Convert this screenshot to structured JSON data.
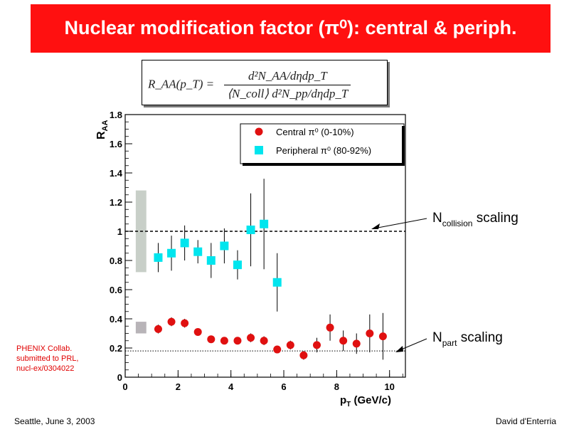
{
  "slide": {
    "title": "Nuclear modification factor (π⁰): central & periph.",
    "formula_lhs": "R_AA(p_T) =",
    "formula_num": "d²N_AA/dηdp_T",
    "formula_den": "⟨N_coll⟩ d²N_pp/dηdp_T",
    "credit_lines": [
      "PHENIX Collab.",
      "submitted to PRL,",
      "nucl-ex/0304022"
    ],
    "footer_left": "Seattle, June  3, 2003",
    "footer_right": "David d'Enterria"
  },
  "colors": {
    "title_bg": "#ff1010",
    "central": "#e01010",
    "peripheral": "#00e5ee",
    "band_grey": "#c8cfc8",
    "credit_red": "#e00000"
  },
  "chart_data": {
    "type": "scatter",
    "ylabel": "R_AA",
    "xlabel": "p_T (GeV/c)",
    "xlim": [
      0,
      10.6
    ],
    "ylim": [
      0,
      1.8
    ],
    "xticks": [
      0,
      2,
      4,
      6,
      8,
      10
    ],
    "yticks": [
      0,
      0.2,
      0.4,
      0.6,
      0.8,
      1,
      1.2,
      1.4,
      1.6,
      1.8
    ],
    "grid": false,
    "legend_position": "top-right",
    "series": [
      {
        "name": "Central π⁰ (0-10%)",
        "marker": "circle",
        "color": "#e01010",
        "x": [
          1.25,
          1.75,
          2.25,
          2.75,
          3.25,
          3.75,
          4.25,
          4.75,
          5.25,
          5.75,
          6.25,
          6.75,
          7.25,
          7.75,
          8.25,
          8.75,
          9.25,
          9.75
        ],
        "y": [
          0.33,
          0.38,
          0.37,
          0.31,
          0.26,
          0.25,
          0.25,
          0.27,
          0.25,
          0.19,
          0.22,
          0.15,
          0.22,
          0.34,
          0.25,
          0.23,
          0.3,
          0.28
        ],
        "err": [
          0.03,
          0.03,
          0.03,
          0.02,
          0.02,
          0.02,
          0.02,
          0.03,
          0.03,
          0.02,
          0.03,
          0.03,
          0.05,
          0.09,
          0.07,
          0.07,
          0.13,
          0.16
        ]
      },
      {
        "name": "Peripheral π⁰ (80-92%)",
        "marker": "square",
        "color": "#00e5ee",
        "x": [
          1.25,
          1.75,
          2.25,
          2.75,
          3.25,
          3.75,
          4.25,
          4.75,
          5.25,
          5.75
        ],
        "y": [
          0.82,
          0.85,
          0.92,
          0.86,
          0.8,
          0.9,
          0.77,
          1.01,
          1.05,
          0.65
        ],
        "err": [
          0.1,
          0.12,
          0.12,
          0.08,
          0.12,
          0.12,
          0.1,
          0.25,
          0.31,
          0.2
        ]
      }
    ],
    "bands": [
      {
        "x": 0.6,
        "width": 0.4,
        "ylow": 0.72,
        "yhigh": 1.28,
        "color": "#c8cfc8"
      },
      {
        "x": 0.6,
        "width": 0.4,
        "ylow": 0.3,
        "yhigh": 0.38,
        "color": "#b8b4b8"
      }
    ],
    "reference_lines": [
      {
        "y": 1.0,
        "style": "dashed",
        "label": "N_collision scaling"
      },
      {
        "y": 0.18,
        "style": "dotted",
        "label": "N_part scaling"
      }
    ],
    "annotations": {
      "ncoll_main": "N",
      "ncoll_sub": "collision",
      "ncoll_rest": "scaling",
      "npart_main": "N",
      "npart_sub": "part",
      "npart_rest": "scaling"
    }
  }
}
